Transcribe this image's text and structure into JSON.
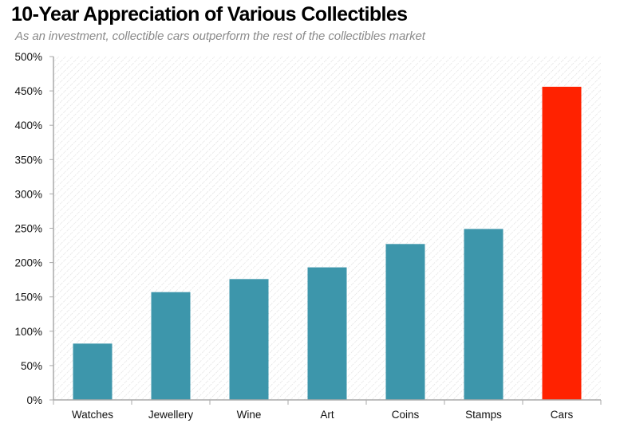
{
  "header": {
    "title": "10-Year Appreciation of Various Collectibles",
    "subtitle": "As an investment, collectible cars outperform the rest of the collectibles market"
  },
  "colors": {
    "default_bar": "#3d96ab",
    "highlight_bar": "#ff2200",
    "axis": "#aaaaaa",
    "hatch": "#d9d9d9"
  },
  "chart_data": {
    "type": "bar",
    "title": "10-Year Appreciation of Various Collectibles",
    "subtitle": "As an investment, collectible cars outperform the rest of the collectibles market",
    "xlabel": "",
    "ylabel": "",
    "categories": [
      "Watches",
      "Jewellery",
      "Wine",
      "Art",
      "Coins",
      "Stamps",
      "Cars"
    ],
    "values": [
      82,
      157,
      176,
      193,
      227,
      249,
      456
    ],
    "value_unit": "%",
    "highlight": "Cars",
    "ylim": [
      0,
      500
    ],
    "yticks": [
      0,
      50,
      100,
      150,
      200,
      250,
      300,
      350,
      400,
      450,
      500
    ],
    "ytick_labels": [
      "0%",
      "50%",
      "100%",
      "150%",
      "200%",
      "250%",
      "300%",
      "350%",
      "400%",
      "450%",
      "500%"
    ],
    "grid": false,
    "background": "diagonal hatch",
    "legend": null
  }
}
